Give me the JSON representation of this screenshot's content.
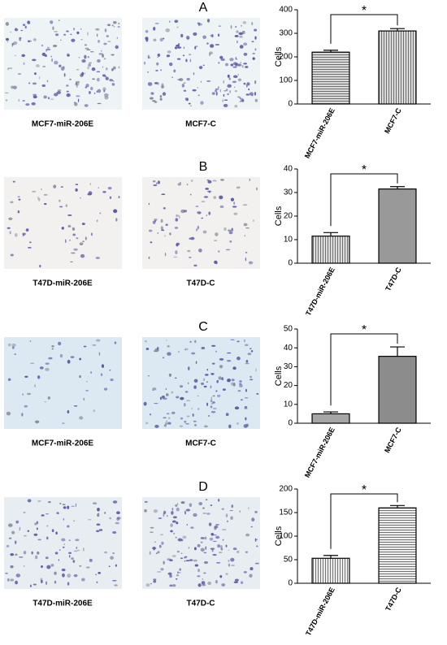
{
  "chart_data": [
    {
      "type": "bar",
      "panel": "A",
      "image_captions": [
        "MCF7-miR-206E",
        "MCF7-C"
      ],
      "categories": [
        "MCF7-miR-206E",
        "MCF7-C"
      ],
      "values": [
        220,
        310
      ],
      "errors": [
        8,
        10
      ],
      "colors": [
        "#d9d9d9",
        "#d9d9d9"
      ],
      "hatch": [
        "horizontal",
        "vertical"
      ],
      "ylabel": "Cells",
      "ylim": [
        0,
        400
      ],
      "yticks": [
        0,
        100,
        200,
        300,
        400
      ],
      "annotation": "*"
    },
    {
      "type": "bar",
      "panel": "B",
      "image_captions": [
        "T47D-miR-206E",
        "T47D-C"
      ],
      "categories": [
        "T47D-miR-206E",
        "T47D-C"
      ],
      "values": [
        11.5,
        31.5
      ],
      "errors": [
        1.5,
        1
      ],
      "colors": [
        "#dddddd",
        "#999999"
      ],
      "hatch": [
        "vertical",
        "none"
      ],
      "ylabel": "Cells",
      "ylim": [
        0,
        40
      ],
      "yticks": [
        0,
        10,
        20,
        30,
        40
      ],
      "annotation": "*"
    },
    {
      "type": "bar",
      "panel": "C",
      "image_captions": [
        "MCF7-miR-206E",
        "MCF7-C"
      ],
      "categories": [
        "MCF7-miR-206E",
        "MCF7-C"
      ],
      "values": [
        5,
        35.5
      ],
      "errors": [
        1,
        5
      ],
      "colors": [
        "#a6a6a6",
        "#8c8c8c"
      ],
      "hatch": [
        "none",
        "none"
      ],
      "ylabel": "Cells",
      "ylim": [
        0,
        50
      ],
      "yticks": [
        0,
        10,
        20,
        30,
        40,
        50
      ],
      "annotation": "*"
    },
    {
      "type": "bar",
      "panel": "D",
      "image_captions": [
        "T47D-miR-206E",
        "T47D-C"
      ],
      "categories": [
        "T47D-miR-206E",
        "T47D-C"
      ],
      "values": [
        53,
        160
      ],
      "errors": [
        6,
        5
      ],
      "colors": [
        "#eeeeee",
        "#eeeeee"
      ],
      "hatch": [
        "vertical",
        "horizontal"
      ],
      "ylabel": "Cells",
      "ylim": [
        0,
        200
      ],
      "yticks": [
        0,
        50,
        100,
        150,
        200
      ],
      "annotation": "*"
    }
  ]
}
